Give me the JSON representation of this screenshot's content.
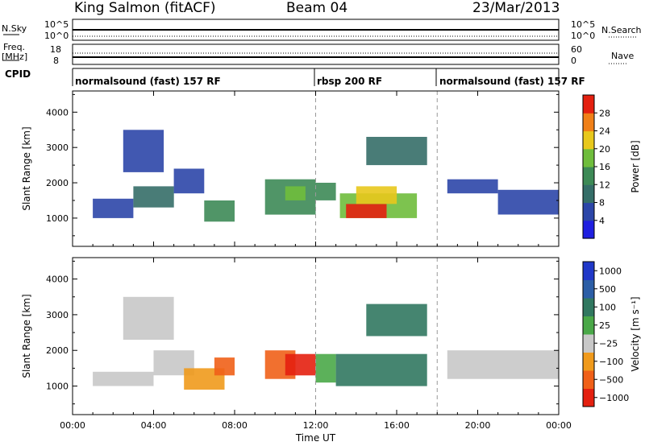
{
  "header": {
    "station": "King Salmon (fitACF)",
    "beam": "Beam 04",
    "date": "23/Mar/2013"
  },
  "summary_panels": {
    "nsky": {
      "label": "N.Sky",
      "ticks": [
        "10^5",
        "10^0"
      ],
      "right_ticks": [
        "10^5",
        "10^0"
      ],
      "right_label": "N.Search"
    },
    "freq": {
      "label_line1": "Freq.",
      "label_line2": "[MHz]",
      "ticks": [
        "18",
        "8"
      ],
      "right_ticks": [
        "60",
        "0"
      ],
      "right_label": "Nave"
    },
    "cpid": {
      "label": "CPID",
      "segments": [
        {
          "text": "normalsound (fast) 157 RF",
          "start_hour": 0,
          "end_hour": 12
        },
        {
          "text": "rbsp 200 RF",
          "start_hour": 12,
          "end_hour": 18
        },
        {
          "text": "normalsound (fast) 157 RF",
          "start_hour": 18,
          "end_hour": 24
        }
      ]
    }
  },
  "chart_data": [
    {
      "type": "heatmap",
      "title": "",
      "parameter": "Power",
      "ylabel": "Slant Range [km]",
      "ylim": [
        200,
        4600
      ],
      "yticks": [
        1000,
        2000,
        3000,
        4000
      ],
      "xlim": [
        0,
        24
      ],
      "colorbar": {
        "label": "Power [dB]",
        "range": [
          0,
          32
        ],
        "ticks": [
          "4",
          "8",
          "12",
          "16",
          "20",
          "24",
          "28"
        ],
        "colors": [
          "#1f1fe0",
          "#2c46a8",
          "#356e68",
          "#3d8a56",
          "#6fbd3c",
          "#e8c81c",
          "#f08018",
          "#e42010"
        ]
      },
      "patches": [
        {
          "t0": 1.0,
          "t1": 3.0,
          "r0": 1000,
          "r1": 1550,
          "level": 1
        },
        {
          "t0": 3.0,
          "t1": 5.0,
          "r0": 1300,
          "r1": 1900,
          "level": 2
        },
        {
          "t0": 5.0,
          "t1": 6.5,
          "r0": 1700,
          "r1": 2400,
          "level": 1
        },
        {
          "t0": 6.5,
          "t1": 8.0,
          "r0": 900,
          "r1": 1500,
          "level": 3
        },
        {
          "t0": 2.5,
          "t1": 4.5,
          "r0": 2300,
          "r1": 3500,
          "level": 1
        },
        {
          "t0": 9.5,
          "t1": 12.0,
          "r0": 1100,
          "r1": 2100,
          "level": 3
        },
        {
          "t0": 10.5,
          "t1": 11.5,
          "r0": 1500,
          "r1": 1900,
          "level": 4
        },
        {
          "t0": 12.0,
          "t1": 13.0,
          "r0": 1500,
          "r1": 2000,
          "level": 3
        },
        {
          "t0": 13.2,
          "t1": 17.0,
          "r0": 1000,
          "r1": 1700,
          "level": 4
        },
        {
          "t0": 13.5,
          "t1": 15.5,
          "r0": 1000,
          "r1": 1400,
          "level": 7
        },
        {
          "t0": 14.0,
          "t1": 16.0,
          "r0": 1400,
          "r1": 1900,
          "level": 5
        },
        {
          "t0": 14.5,
          "t1": 17.5,
          "r0": 2500,
          "r1": 3300,
          "level": 2
        },
        {
          "t0": 18.5,
          "t1": 21.0,
          "r0": 1700,
          "r1": 2100,
          "level": 1
        },
        {
          "t0": 21.0,
          "t1": 24.0,
          "r0": 1100,
          "r1": 1800,
          "level": 1
        }
      ]
    },
    {
      "type": "heatmap",
      "title": "",
      "parameter": "Velocity",
      "ylabel": "Slant Range [km]",
      "xlabel": "Time UT",
      "ylim": [
        200,
        4600
      ],
      "yticks": [
        1000,
        2000,
        3000,
        4000
      ],
      "xlim": [
        0,
        24
      ],
      "xticks": [
        "00:00",
        "04:00",
        "08:00",
        "12:00",
        "16:00",
        "20:00",
        "00:00"
      ],
      "colorbar": {
        "label": "Velocity [m s⁻¹]",
        "ticks": [
          "1000",
          "500",
          "100",
          "25",
          "−25",
          "−100",
          "−500",
          "−1000"
        ],
        "colors": [
          "#2038c8",
          "#2c5ea6",
          "#317860",
          "#4aa848",
          "#c8c8c8",
          "#f09a1c",
          "#f06018",
          "#e42010"
        ]
      },
      "patches": [
        {
          "t0": 1.0,
          "t1": 4.0,
          "r0": 1000,
          "r1": 1400,
          "level": 4
        },
        {
          "t0": 4.0,
          "t1": 6.0,
          "r0": 1300,
          "r1": 2000,
          "level": 4
        },
        {
          "t0": 2.5,
          "t1": 5.0,
          "r0": 2300,
          "r1": 3500,
          "level": 4
        },
        {
          "t0": 5.5,
          "t1": 7.5,
          "r0": 900,
          "r1": 1500,
          "level": 5
        },
        {
          "t0": 7.0,
          "t1": 8.0,
          "r0": 1300,
          "r1": 1800,
          "level": 6
        },
        {
          "t0": 9.5,
          "t1": 11.0,
          "r0": 1200,
          "r1": 2000,
          "level": 6
        },
        {
          "t0": 10.5,
          "t1": 12.0,
          "r0": 1300,
          "r1": 1900,
          "level": 7
        },
        {
          "t0": 12.0,
          "t1": 13.0,
          "r0": 1100,
          "r1": 1900,
          "level": 3
        },
        {
          "t0": 13.0,
          "t1": 17.5,
          "r0": 1000,
          "r1": 1900,
          "level": 2
        },
        {
          "t0": 14.5,
          "t1": 17.5,
          "r0": 2400,
          "r1": 3300,
          "level": 2
        },
        {
          "t0": 18.5,
          "t1": 24.0,
          "r0": 1200,
          "r1": 2000,
          "level": 4
        }
      ]
    }
  ]
}
